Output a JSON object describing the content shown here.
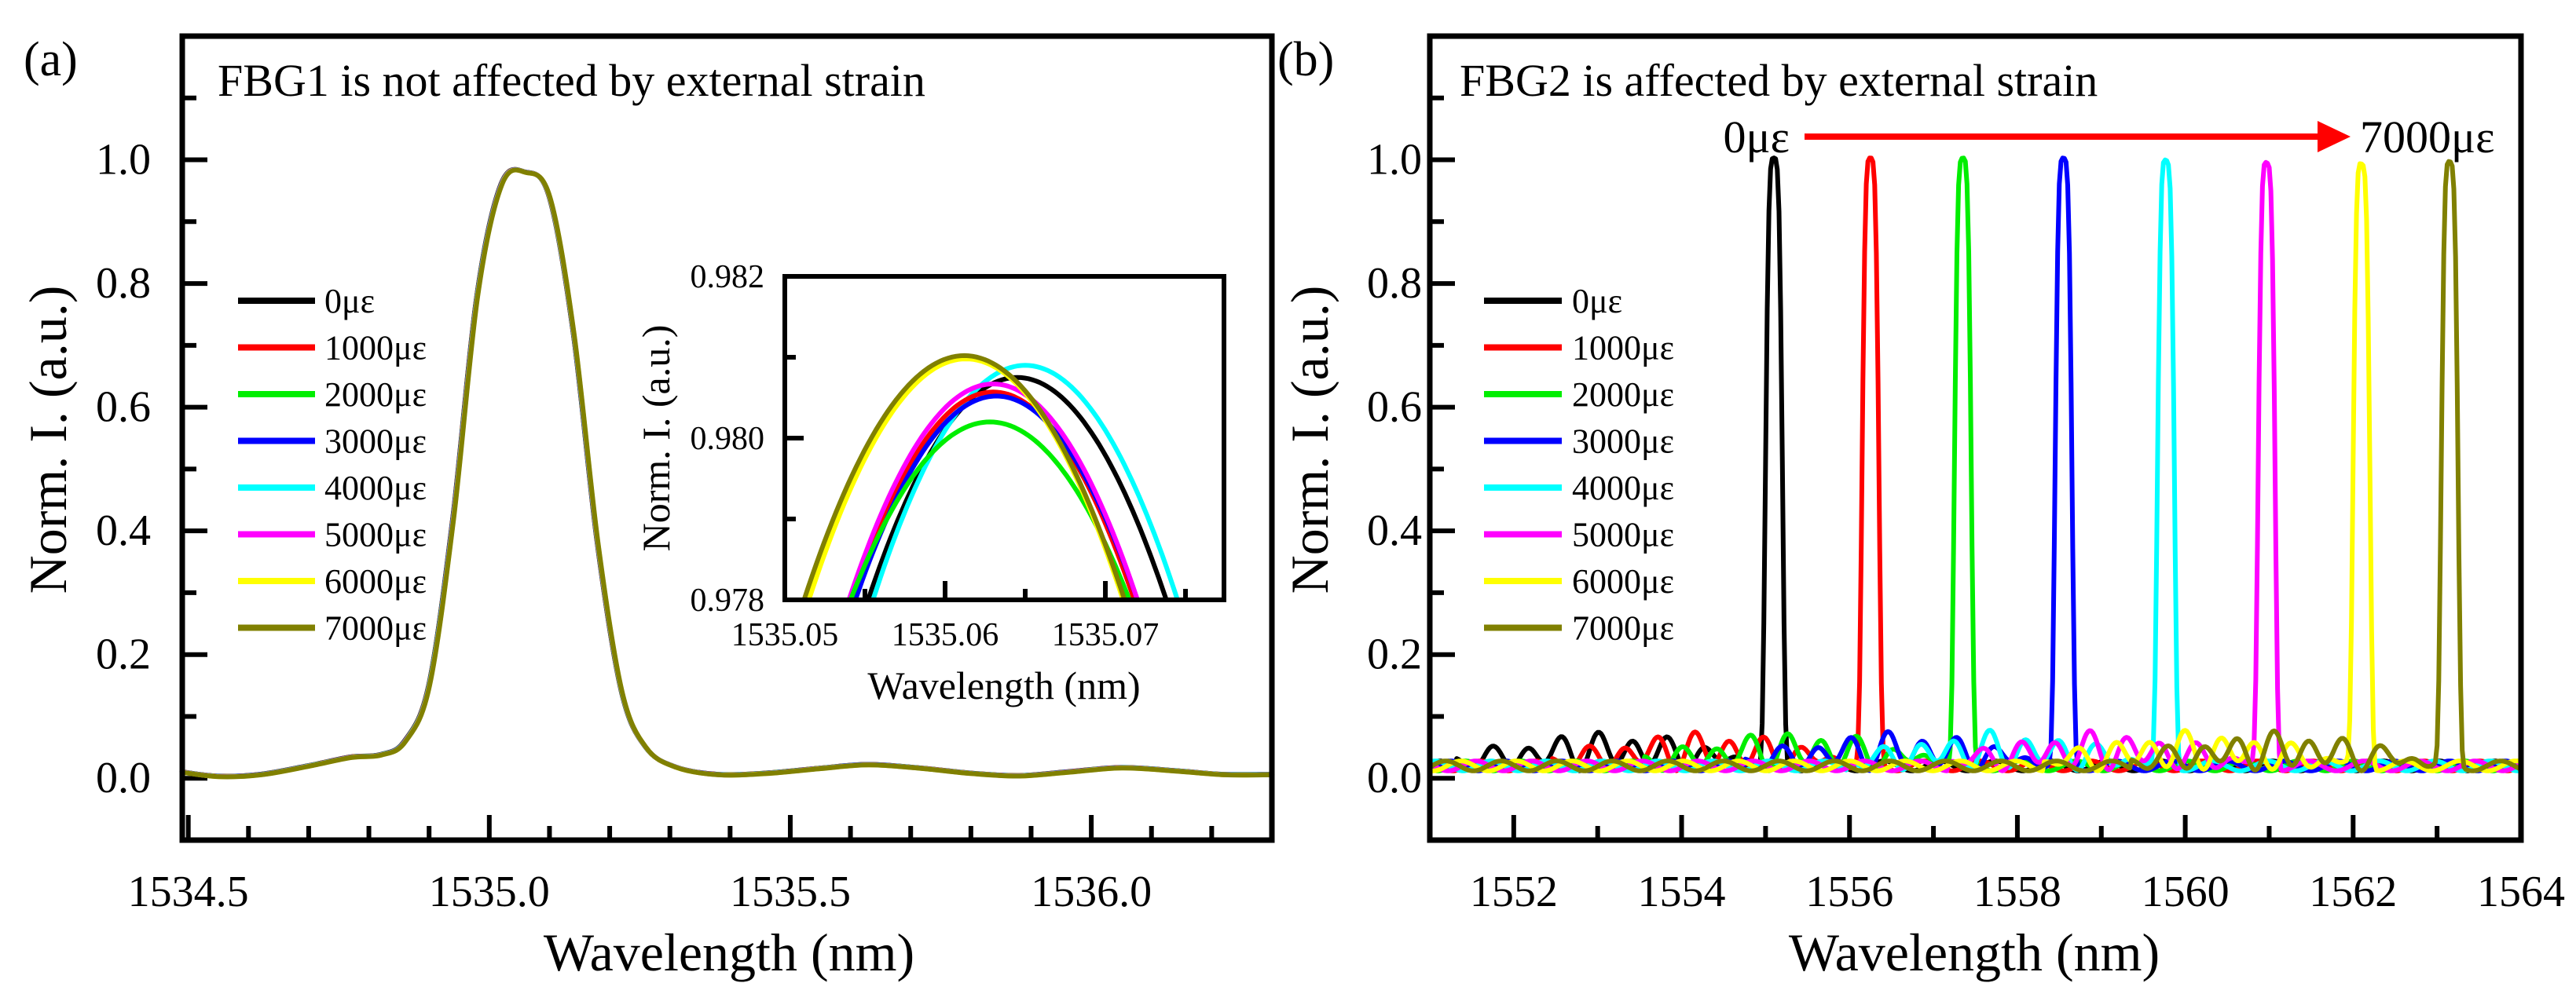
{
  "chart_data": [
    {
      "type": "line",
      "panel_label": "(a)",
      "title": "FBG1 is not affected by external strain",
      "xlabel": "Wavelength (nm)",
      "ylabel": "Norm. I. (a.u.)",
      "xlim": [
        1534.49,
        1536.3
      ],
      "ylim": [
        -0.1,
        1.2
      ],
      "xticks": [
        "1534.5",
        "1535.0",
        "1535.5",
        "1536.0"
      ],
      "yticks": [
        "0.0",
        "0.2",
        "0.4",
        "0.6",
        "0.8",
        "1.0"
      ],
      "legend_position": "center-left",
      "series_names": [
        "0με",
        "1000με",
        "2000με",
        "3000με",
        "4000με",
        "5000με",
        "6000με",
        "7000με"
      ],
      "series_colors": [
        "#000000",
        "#ff0000",
        "#00ee00",
        "#0000ff",
        "#00ffff",
        "#ff00ff",
        "#ffff00",
        "#808000"
      ],
      "note": "all series overlap",
      "curve_x": [
        1534.49,
        1534.55,
        1534.62,
        1534.7,
        1534.77,
        1534.82,
        1534.86,
        1534.9,
        1534.94,
        1534.98,
        1535.02,
        1535.06,
        1535.1,
        1535.14,
        1535.18,
        1535.22,
        1535.26,
        1535.31,
        1535.38,
        1535.46,
        1535.55,
        1535.63,
        1535.72,
        1535.8,
        1535.88,
        1535.96,
        1536.05,
        1536.14,
        1536.22,
        1536.3
      ],
      "curve_y": [
        0.01,
        0.003,
        0.006,
        0.02,
        0.034,
        0.038,
        0.06,
        0.15,
        0.42,
        0.78,
        0.96,
        0.98,
        0.94,
        0.72,
        0.38,
        0.14,
        0.05,
        0.018,
        0.006,
        0.008,
        0.016,
        0.022,
        0.016,
        0.008,
        0.004,
        0.01,
        0.017,
        0.012,
        0.006,
        0.006
      ],
      "inset": {
        "xlabel": "Wavelength (nm)",
        "ylabel": "Norm. I. (a.u.)",
        "xlim": [
          1535.05,
          1535.0774
        ],
        "ylim": [
          0.978,
          0.982
        ],
        "xticks": [
          "1535.05",
          "1535.06",
          "1535.07"
        ],
        "yticks": [
          "0.978",
          "0.980",
          "0.982"
        ],
        "peak_wavelength": [
          1535.0645,
          1535.063,
          1535.0628,
          1535.0632,
          1535.065,
          1535.063,
          1535.0613,
          1535.0612
        ],
        "peak_intensity": [
          0.98075,
          0.98057,
          0.9802,
          0.98052,
          0.9809,
          0.98067,
          0.98098,
          0.98102
        ],
        "half_width_at_0978": [
          0.0093,
          0.0088,
          0.0087,
          0.0088,
          0.0095,
          0.009,
          0.0098,
          0.01
        ]
      }
    },
    {
      "type": "line",
      "panel_label": "(b)",
      "title": "FBG2 is affected by external strain",
      "xlabel": "Wavelength (nm)",
      "ylabel": "Norm. I. (a.u.)",
      "xlim": [
        1551,
        1564
      ],
      "ylim": [
        -0.1,
        1.2
      ],
      "xticks": [
        "1552",
        "1554",
        "1556",
        "1558",
        "1560",
        "1562",
        "1564"
      ],
      "yticks": [
        "0.0",
        "0.2",
        "0.4",
        "0.6",
        "0.8",
        "1.0"
      ],
      "legend_position": "center-left",
      "arrow_start_label": "0με",
      "arrow_end_label": "7000με",
      "arrow_color": "#ff0000",
      "series_names": [
        "0με",
        "1000με",
        "2000με",
        "3000με",
        "4000με",
        "5000με",
        "6000με",
        "7000με"
      ],
      "series_colors": [
        "#000000",
        "#ff0000",
        "#00ee00",
        "#0000ff",
        "#00ffff",
        "#ff00ff",
        "#ffff00",
        "#808000"
      ],
      "peak_wavelength": [
        1555.1,
        1556.25,
        1557.35,
        1558.55,
        1559.77,
        1560.97,
        1562.1,
        1563.15
      ],
      "peak_intensity": [
        0.975,
        0.975,
        0.975,
        0.975,
        0.975,
        0.975,
        0.972,
        0.97
      ],
      "baseline_level": 0.02,
      "sidelobe_max": 0.07
    }
  ]
}
